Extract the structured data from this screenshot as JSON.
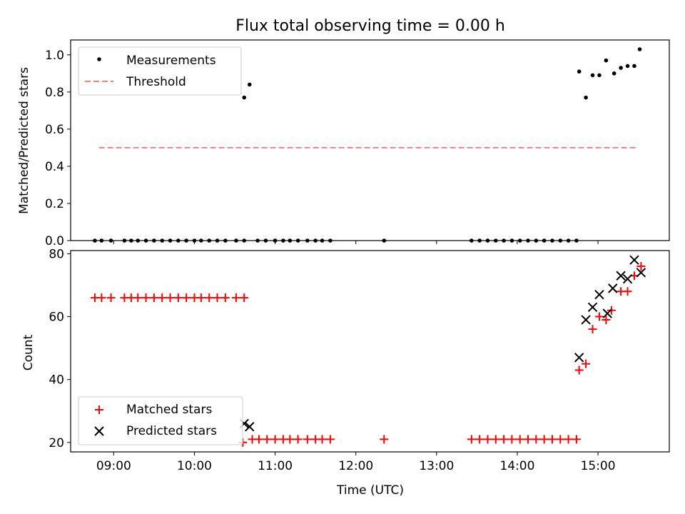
{
  "figure": {
    "title": "Flux total observing time = 0.00 h",
    "xlabel": "Time (UTC)",
    "xticks": [
      "09:00",
      "10:00",
      "11:00",
      "12:00",
      "13:00",
      "14:00",
      "15:00"
    ]
  },
  "chart_data": [
    {
      "type": "scatter",
      "title": "Flux total observing time = 0.00 h",
      "xlabel": "",
      "ylabel": "Matched/Predicted stars",
      "xlim": [
        "08:28",
        "15:53"
      ],
      "ylim": [
        0,
        1.08
      ],
      "yticks": [
        "0.0",
        "0.2",
        "0.4",
        "0.6",
        "0.8",
        "1.0"
      ],
      "legend_position": "top-left",
      "grid": false,
      "series": [
        {
          "name": "Measurements",
          "marker": "dot",
          "color": "#000000",
          "points": [
            [
              "08:46",
              0
            ],
            [
              "08:51",
              0
            ],
            [
              "08:58",
              0
            ],
            [
              "09:08",
              0
            ],
            [
              "09:13",
              0
            ],
            [
              "09:18",
              0
            ],
            [
              "09:24",
              0
            ],
            [
              "09:30",
              0
            ],
            [
              "09:36",
              0
            ],
            [
              "09:42",
              0
            ],
            [
              "09:48",
              0
            ],
            [
              "09:54",
              0
            ],
            [
              "10:00",
              0
            ],
            [
              "10:05",
              0
            ],
            [
              "10:11",
              0
            ],
            [
              "10:17",
              0
            ],
            [
              "10:23",
              0
            ],
            [
              "10:31",
              0
            ],
            [
              "10:37",
              0
            ],
            [
              "10:37",
              0.77
            ],
            [
              "10:41",
              0.84
            ],
            [
              "10:47",
              0
            ],
            [
              "10:53",
              0
            ],
            [
              "11:00",
              0
            ],
            [
              "11:06",
              0
            ],
            [
              "11:11",
              0
            ],
            [
              "11:17",
              0
            ],
            [
              "11:24",
              0
            ],
            [
              "11:30",
              0
            ],
            [
              "11:35",
              0
            ],
            [
              "11:41",
              0
            ],
            [
              "12:21",
              0
            ],
            [
              "13:26",
              0
            ],
            [
              "13:32",
              0
            ],
            [
              "13:38",
              0
            ],
            [
              "13:44",
              0
            ],
            [
              "13:50",
              0
            ],
            [
              "13:56",
              0
            ],
            [
              "14:02",
              0
            ],
            [
              "14:08",
              0
            ],
            [
              "14:14",
              0
            ],
            [
              "14:20",
              0
            ],
            [
              "14:26",
              0
            ],
            [
              "14:32",
              0
            ],
            [
              "14:38",
              0
            ],
            [
              "14:44",
              0
            ],
            [
              "14:46",
              0.91
            ],
            [
              "14:51",
              0.77
            ],
            [
              "14:56",
              0.89
            ],
            [
              "15:01",
              0.89
            ],
            [
              "15:06",
              0.97
            ],
            [
              "15:12",
              0.9
            ],
            [
              "15:17",
              0.93
            ],
            [
              "15:22",
              0.94
            ],
            [
              "15:27",
              0.94
            ],
            [
              "15:31",
              1.03
            ]
          ]
        },
        {
          "name": "Threshold",
          "style": "dashed",
          "color": "#ff7f7f",
          "points": [
            [
              "08:49",
              0.5
            ],
            [
              "15:29",
              0.5
            ]
          ]
        }
      ]
    },
    {
      "type": "scatter",
      "title": "",
      "xlabel": "Time (UTC)",
      "ylabel": "Count",
      "xlim": [
        "08:28",
        "15:53"
      ],
      "ylim": [
        17,
        81
      ],
      "yticks": [
        "20",
        "40",
        "60",
        "80"
      ],
      "legend_position": "bottom-left",
      "grid": false,
      "series": [
        {
          "name": "Matched stars",
          "marker": "plus",
          "color": "#ff0000",
          "points": [
            [
              "08:46",
              66
            ],
            [
              "08:51",
              66
            ],
            [
              "08:58",
              66
            ],
            [
              "09:08",
              66
            ],
            [
              "09:13",
              66
            ],
            [
              "09:18",
              66
            ],
            [
              "09:24",
              66
            ],
            [
              "09:30",
              66
            ],
            [
              "09:36",
              66
            ],
            [
              "09:42",
              66
            ],
            [
              "09:48",
              66
            ],
            [
              "09:54",
              66
            ],
            [
              "10:00",
              66
            ],
            [
              "10:05",
              66
            ],
            [
              "10:11",
              66
            ],
            [
              "10:17",
              66
            ],
            [
              "10:23",
              66
            ],
            [
              "10:31",
              66
            ],
            [
              "10:37",
              66
            ],
            [
              "10:36",
              20
            ],
            [
              "10:43",
              21
            ],
            [
              "10:48",
              21
            ],
            [
              "10:54",
              21
            ],
            [
              "11:00",
              21
            ],
            [
              "11:06",
              21
            ],
            [
              "11:11",
              21
            ],
            [
              "11:17",
              21
            ],
            [
              "11:24",
              21
            ],
            [
              "11:30",
              21
            ],
            [
              "11:35",
              21
            ],
            [
              "11:41",
              21
            ],
            [
              "12:21",
              21
            ],
            [
              "13:26",
              21
            ],
            [
              "13:32",
              21
            ],
            [
              "13:38",
              21
            ],
            [
              "13:44",
              21
            ],
            [
              "13:50",
              21
            ],
            [
              "13:56",
              21
            ],
            [
              "14:02",
              21
            ],
            [
              "14:08",
              21
            ],
            [
              "14:14",
              21
            ],
            [
              "14:20",
              21
            ],
            [
              "14:26",
              21
            ],
            [
              "14:32",
              21
            ],
            [
              "14:38",
              21
            ],
            [
              "14:44",
              21
            ],
            [
              "14:46",
              43
            ],
            [
              "14:51",
              45
            ],
            [
              "14:56",
              56
            ],
            [
              "15:01",
              60
            ],
            [
              "15:06",
              59
            ],
            [
              "15:10",
              62
            ],
            [
              "15:17",
              68
            ],
            [
              "15:22",
              68
            ],
            [
              "15:27",
              73
            ],
            [
              "15:32",
              76
            ]
          ]
        },
        {
          "name": "Predicted stars",
          "marker": "x",
          "color": "#000000",
          "points": [
            [
              "10:37",
              26
            ],
            [
              "10:41",
              25
            ],
            [
              "14:46",
              47
            ],
            [
              "14:51",
              59
            ],
            [
              "14:56",
              63
            ],
            [
              "15:01",
              67
            ],
            [
              "15:07",
              61
            ],
            [
              "15:11",
              69
            ],
            [
              "15:17",
              73
            ],
            [
              "15:22",
              72
            ],
            [
              "15:27",
              78
            ],
            [
              "15:32",
              74
            ]
          ]
        }
      ]
    }
  ]
}
